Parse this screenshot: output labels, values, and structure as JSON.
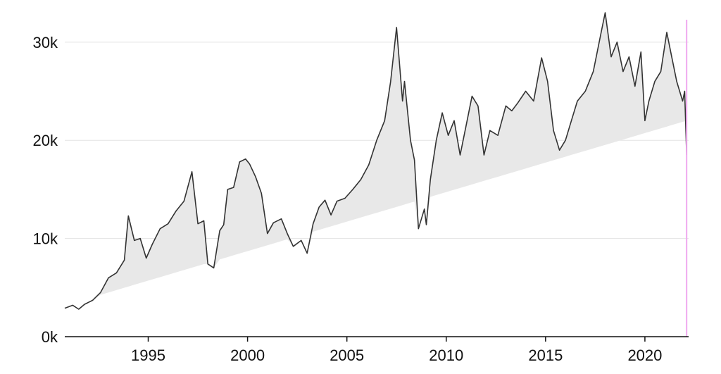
{
  "chart_data": {
    "type": "area",
    "title": "",
    "xlabel": "",
    "ylabel": "",
    "xlim": [
      1990.8,
      2022.2
    ],
    "ylim": [
      0,
      33000
    ],
    "y_ticks": [
      0,
      10000,
      20000,
      30000
    ],
    "y_tick_labels": [
      "0k",
      "10k",
      "20k",
      "30k"
    ],
    "x_ticks": [
      1995,
      2000,
      2005,
      2010,
      2015,
      2020
    ],
    "x_tick_labels": [
      "1995",
      "2000",
      "2005",
      "2010",
      "2015",
      "2020"
    ],
    "grid": "horizontal",
    "colors": {
      "line": "#333333",
      "fill": "#e8e8e8",
      "marker": "#f0a8f0",
      "grid": "#e3e3e3"
    },
    "baseline": {
      "start": [
        1991.5,
        3600
      ],
      "end": [
        2022.1,
        22000
      ]
    },
    "marker_x": 2022.1,
    "series": [
      {
        "x": [
          1990.8,
          1991.2,
          1991.5,
          1991.8,
          1992.2,
          1992.6,
          1993.0,
          1993.4,
          1993.8,
          1994.0,
          1994.3,
          1994.6,
          1994.9,
          1995.2,
          1995.6,
          1996.0,
          1996.4,
          1996.8,
          1997.2,
          1997.5,
          1997.8,
          1998.0,
          1998.3,
          1998.6,
          1998.8,
          1999.0,
          1999.3,
          1999.6,
          1999.9,
          2000.1,
          2000.4,
          2000.7,
          2001.0,
          2001.3,
          2001.7,
          2002.0,
          2002.3,
          2002.7,
          2003.0,
          2003.3,
          2003.6,
          2003.9,
          2004.2,
          2004.5,
          2004.9,
          2005.3,
          2005.7,
          2006.1,
          2006.5,
          2006.9,
          2007.2,
          2007.5,
          2007.8,
          2007.9,
          2008.2,
          2008.4,
          2008.6,
          2008.9,
          2009.0,
          2009.2,
          2009.5,
          2009.8,
          2010.1,
          2010.4,
          2010.7,
          2011.0,
          2011.3,
          2011.6,
          2011.9,
          2012.2,
          2012.6,
          2013.0,
          2013.3,
          2013.6,
          2014.0,
          2014.4,
          2014.8,
          2015.1,
          2015.4,
          2015.7,
          2016.0,
          2016.3,
          2016.6,
          2017.0,
          2017.4,
          2017.8,
          2018.0,
          2018.3,
          2018.6,
          2018.9,
          2019.2,
          2019.5,
          2019.8,
          2020.0,
          2020.2,
          2020.5,
          2020.8,
          2021.1,
          2021.3,
          2021.6,
          2021.9,
          2022.0,
          2022.1
        ],
        "y": [
          2900,
          3200,
          2800,
          3300,
          3700,
          4500,
          6000,
          6500,
          7800,
          12300,
          9800,
          10000,
          8000,
          9400,
          11000,
          11500,
          12800,
          13800,
          16800,
          11500,
          11800,
          7400,
          7000,
          10800,
          11400,
          15000,
          15200,
          17800,
          18100,
          17600,
          16300,
          14600,
          10500,
          11600,
          12000,
          10500,
          9200,
          9800,
          8500,
          11500,
          13200,
          13900,
          12400,
          13800,
          14100,
          15000,
          16000,
          17500,
          20000,
          22000,
          26000,
          31500,
          24000,
          26000,
          20000,
          18000,
          11000,
          13000,
          11400,
          16000,
          20000,
          22800,
          20500,
          22000,
          18500,
          21500,
          24500,
          23500,
          18500,
          21000,
          20500,
          23500,
          23000,
          23800,
          25000,
          24000,
          28400,
          26000,
          21000,
          19000,
          20000,
          22000,
          24000,
          25000,
          27000,
          31000,
          33000,
          28500,
          30000,
          27000,
          28500,
          25500,
          29000,
          22000,
          24000,
          26000,
          27000,
          31000,
          29000,
          26000,
          24000,
          25000,
          18500
        ]
      }
    ]
  }
}
